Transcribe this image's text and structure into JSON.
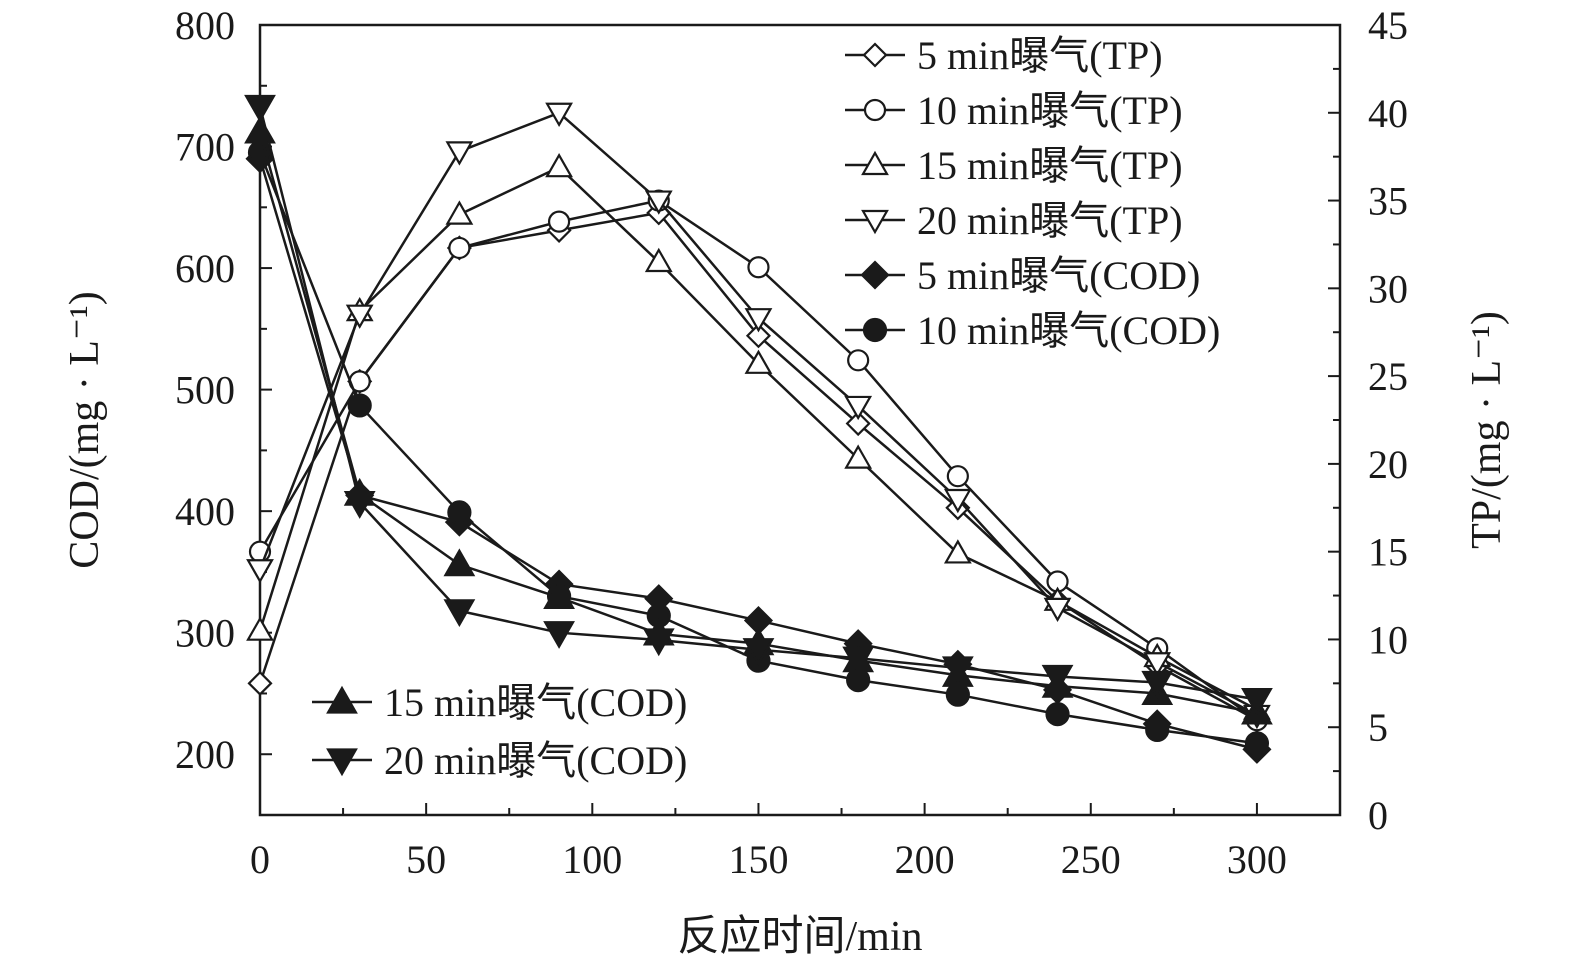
{
  "chart_data": {
    "type": "line",
    "xlabel": "反应时间/min",
    "ylabel_left": "COD/(mg · L⁻¹)",
    "ylabel_right": "TP/(mg · L⁻¹)",
    "xlim": [
      0,
      325
    ],
    "ylim_left": [
      150,
      800
    ],
    "ylim_right": [
      0,
      45
    ],
    "xticks": [
      0,
      50,
      100,
      150,
      200,
      250,
      300
    ],
    "yticks_left": [
      200,
      300,
      400,
      500,
      600,
      700,
      800
    ],
    "yticks_right": [
      0,
      5,
      10,
      15,
      20,
      25,
      30,
      35,
      40,
      45
    ],
    "grid": false,
    "x": [
      0,
      30,
      60,
      90,
      120,
      150,
      180,
      210,
      240,
      270,
      300
    ],
    "series": [
      {
        "name": "5 min曝气(TP)",
        "axis": "right",
        "marker": "diamond-open",
        "legend": "top-right",
        "values": [
          7.5,
          24.7,
          32.3,
          33.3,
          34.3,
          27.3,
          22.3,
          17.5,
          12.2,
          8.5,
          5.4
        ]
      },
      {
        "name": "10 min曝气(TP)",
        "axis": "right",
        "marker": "circle-open",
        "legend": "top-right",
        "values": [
          15.0,
          24.7,
          32.3,
          33.8,
          35.0,
          31.2,
          25.9,
          19.3,
          13.3,
          9.5,
          5.4
        ]
      },
      {
        "name": "15 min曝气(TP)",
        "axis": "right",
        "marker": "triangle-up-open",
        "legend": "top-right",
        "values": [
          10.5,
          28.7,
          34.2,
          36.9,
          31.5,
          25.7,
          20.3,
          14.9,
          12.2,
          9.0,
          6.0
        ]
      },
      {
        "name": "20 min曝气(TP)",
        "axis": "right",
        "marker": "triangle-down-open",
        "legend": "top-right",
        "values": [
          14.0,
          28.5,
          37.8,
          40.0,
          35.0,
          28.3,
          23.3,
          18.0,
          11.8,
          8.7,
          5.7
        ]
      },
      {
        "name": "5 min曝气(COD)",
        "axis": "left",
        "marker": "diamond-filled",
        "legend": "top-right",
        "values": [
          690,
          413,
          391,
          340,
          328,
          310,
          291,
          274,
          253,
          225,
          204
        ]
      },
      {
        "name": "10 min曝气(COD)",
        "axis": "left",
        "marker": "circle-filled",
        "legend": "top-right",
        "values": [
          695,
          487,
          399,
          330,
          314,
          277,
          261,
          249,
          233,
          220,
          209
        ]
      },
      {
        "name": "15 min曝气(COD)",
        "axis": "left",
        "marker": "triangle-up-filled",
        "legend": "bottom-left",
        "values": [
          712,
          414,
          356,
          329,
          299,
          291,
          277,
          265,
          256,
          250,
          234
        ]
      },
      {
        "name": "20 min曝气(COD)",
        "axis": "left",
        "marker": "triangle-down-filled",
        "legend": "bottom-left",
        "values": [
          733,
          407,
          318,
          300,
          294,
          286,
          279,
          271,
          264,
          259,
          245
        ]
      }
    ]
  }
}
